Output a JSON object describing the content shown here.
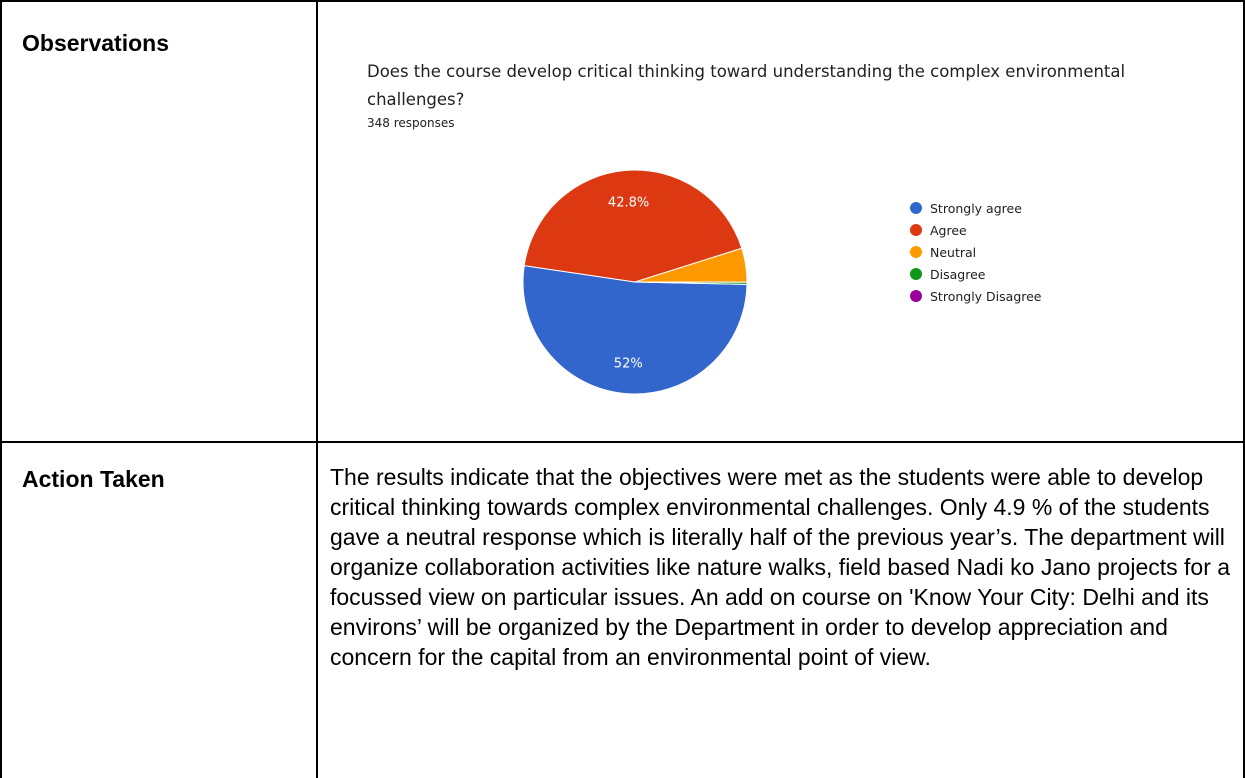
{
  "rows": {
    "observations_label": "Observations",
    "action_label": "Action Taken",
    "action_text": "The results indicate that the objectives were met as the students were able to develop critical thinking towards complex environmental challenges. Only 4.9 % of the students gave a neutral response which is literally half of the previous year’s. The department will organize collaboration activities like nature walks, field based Nadi ko Jano projects for a focussed view on particular issues. An add on course on 'Know Your City: Delhi and its environs’ will be organized by the Department in order to develop appreciation and concern for the capital from an environmental point of view."
  },
  "chart_data": {
    "type": "pie",
    "title": "Does the course develop critical thinking toward understanding the complex environmental challenges?",
    "subtitle": "348 responses",
    "legend_position": "right",
    "slices": [
      {
        "label": "Strongly agree",
        "value": 52,
        "display": "52%",
        "color": "#3366cc"
      },
      {
        "label": "Agree",
        "value": 42.8,
        "display": "42.8%",
        "color": "#dc3912"
      },
      {
        "label": "Neutral",
        "value": 4.9,
        "display": "",
        "color": "#ff9900"
      },
      {
        "label": "Disagree",
        "value": 0.3,
        "display": "",
        "color": "#109618"
      },
      {
        "label": "Strongly Disagree",
        "value": 0,
        "display": "",
        "color": "#990099"
      }
    ]
  }
}
